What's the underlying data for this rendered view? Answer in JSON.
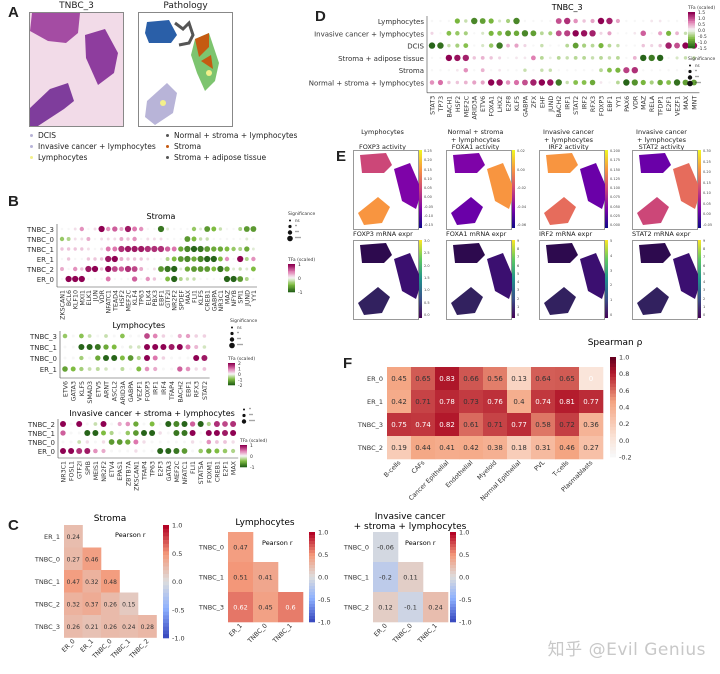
{
  "panels": {
    "A": {
      "letter": "A",
      "he_title": "TNBC_3",
      "path_title": "Pathology",
      "legend": [
        {
          "label": "DCIS",
          "color": "#b7b3d6"
        },
        {
          "label": "Invasive cancer + lymphocytes",
          "color": "#b8b4d8"
        },
        {
          "label": "Lymphocytes",
          "color": "#f3f08a"
        },
        {
          "label": "Normal + stroma + lymphocytes",
          "color": "#555555"
        },
        {
          "label": "Stroma",
          "color": "#c55a11"
        },
        {
          "label": "Stroma + adipose tissue",
          "color": "#555555"
        }
      ]
    },
    "B": {
      "letter": "B"
    },
    "C": {
      "letter": "C"
    },
    "D": {
      "letter": "D"
    },
    "E": {
      "letter": "E",
      "activity": [
        {
          "title": "Lymphocytes\n\nFOXP3 activity",
          "ticks": [
            "0.25",
            "0.20",
            "0.15",
            "0.10",
            "0.05",
            "0.00",
            "-0.05",
            "-0.10",
            "-0.15"
          ]
        },
        {
          "title": "Normal + stroma\n+ lymphocytes\nFOXA1 activity",
          "ticks": [
            "0.02",
            "0.00",
            "-0.02",
            "-0.04",
            "-0.06"
          ]
        },
        {
          "title": "Invasive cancer\n+ lymphocytes\nIRF2 activity",
          "ticks": [
            "0.200",
            "0.175",
            "0.150",
            "0.125",
            "0.100",
            "0.075",
            "0.050",
            "0.025",
            "0.000"
          ]
        },
        {
          "title": "Invasive cancer\n+ lymphocytes\nSTAT2 activity",
          "ticks": [
            "0.30",
            "0.25",
            "0.20",
            "0.15",
            "0.10",
            "0.05",
            "0.00",
            "-0.05"
          ]
        }
      ],
      "mrna": [
        {
          "title": "FOXP3 mRNA expr",
          "ticks": [
            "3.0",
            "2.5",
            "2.0",
            "1.5",
            "1.0",
            "0.5",
            "0.0"
          ]
        },
        {
          "title": "FOXA1 mRNA expr",
          "ticks": [
            "9",
            "8",
            "7",
            "6",
            "5",
            "4",
            "3",
            "2",
            "1",
            "0"
          ]
        },
        {
          "title": "IRF2 mRNA expr",
          "ticks": [
            "5",
            "4",
            "3",
            "2",
            "1",
            "0"
          ]
        },
        {
          "title": "STAT2 mRNA expr",
          "ticks": [
            "9",
            "8",
            "7",
            "6",
            "5",
            "4",
            "3",
            "2",
            "1",
            "0"
          ]
        }
      ]
    },
    "F": {
      "letter": "F"
    }
  },
  "watermark": "知乎 @Evil Genius",
  "chart_data": [
    {
      "id": "B-stroma",
      "type": "heatmap",
      "subtype": "dotplot",
      "title": "Stroma",
      "rows": [
        "TNBC_3",
        "TNBC_0",
        "TNBC_1",
        "ER_1",
        "TNBC_2",
        "ER_0"
      ],
      "columns": [
        "ZKSCAN1",
        "BCL6",
        "KLF10",
        "MXI1",
        "ELK1",
        "JUN",
        "VDR",
        "NFATC1",
        "TEAD4",
        "HSF2",
        "MEF2C",
        "KLF4",
        "TP63",
        "ELK4",
        "PBX3",
        "EBF1",
        "GTF2I",
        "NR2F2",
        "SPDEF",
        "MAX",
        "FLI1",
        "KLF5",
        "CREB1",
        "GABPA",
        "NR3C1",
        "MAZ",
        "NFYB",
        "SPI1",
        "JUND",
        "YY1"
      ],
      "values": [
        [
          0,
          0,
          0.1,
          0.4,
          0,
          0.1,
          1.0,
          0.4,
          0.6,
          0.3,
          0.9,
          0.5,
          0.4,
          0,
          0,
          -0.9,
          -0.1,
          0,
          0,
          0,
          -0.4,
          -0.1,
          -0.7,
          -0.5,
          -0.2,
          0,
          0,
          -0.3,
          -0.7,
          -0.7
        ],
        [
          -0.4,
          -0.3,
          0.1,
          0.1,
          0.3,
          0,
          0.1,
          0.1,
          0.1,
          0.3,
          0.2,
          0.4,
          0,
          0.1,
          0.1,
          0.1,
          0,
          0,
          0,
          -0.7,
          -0.5,
          -0.2,
          -0.2,
          0,
          0,
          0,
          0,
          0,
          -0.1,
          0
        ],
        [
          0.2,
          0.2,
          0.2,
          0.2,
          0.1,
          0,
          0.1,
          0.5,
          0.5,
          0.8,
          0.9,
          0.9,
          0.9,
          0.8,
          0.8,
          0.8,
          0.6,
          0.5,
          -0.6,
          -0.8,
          -1.0,
          -0.9,
          -0.7,
          -0.6,
          -0.6,
          -0.5,
          -0.4,
          -0.3,
          -0.6,
          -0.1
        ],
        [
          0,
          0.2,
          0,
          0,
          0.2,
          0.2,
          0.2,
          0.9,
          1.0,
          0.3,
          0.2,
          0.2,
          0.2,
          0.1,
          0,
          0,
          -0.3,
          -0.5,
          -0.7,
          -0.8,
          -0.6,
          -0.8,
          -1.0,
          -1.0,
          -0.5,
          0.4,
          0,
          1.0,
          -0.3,
          0.4
        ],
        [
          0.3,
          0,
          0.4,
          0.2,
          0.9,
          1.0,
          0.2,
          1.0,
          0.7,
          0.6,
          0.8,
          0.7,
          0.3,
          0,
          0.1,
          -0.7,
          -0.9,
          -1.0,
          -0.1,
          -0.6,
          -0.7,
          -0.7,
          -0.7,
          -0.5,
          -0.9,
          -0.6,
          -0.1,
          -0.2,
          -0.1,
          -0.5
        ],
        [
          0,
          1.0,
          1.0,
          1.0,
          0,
          0,
          0,
          0.5,
          0,
          0,
          0,
          0.6,
          0,
          0.4,
          0.2,
          0,
          -0.5,
          -1.0,
          -0.3,
          -0.2,
          -0.2,
          0,
          0,
          0,
          0,
          -1.0,
          -1.0,
          -0.7,
          -0.3,
          0
        ]
      ],
      "colorbar": {
        "label": "TFa (scaled)",
        "ticks": [
          "1",
          "0",
          "-1"
        ],
        "range": [
          -1,
          1
        ]
      },
      "size_legend": {
        "title": "Significance",
        "levels": [
          "ns",
          "*",
          "**",
          "***"
        ]
      }
    },
    {
      "id": "B-lymphocytes",
      "type": "heatmap",
      "subtype": "dotplot",
      "title": "Lymphocytes",
      "rows": [
        "TNBC_3",
        "TNBC_1",
        "TNBC_0",
        "ER_1"
      ],
      "columns": [
        "ETV6",
        "GATA3",
        "KLF5",
        "SMAD3",
        "ETV5",
        "ARNT",
        "ASCL2",
        "ARID3A",
        "GABPA",
        "VEZF1",
        "FOXP3",
        "IRF1",
        "IRF4",
        "TFAP4",
        "BACH2",
        "EBF1",
        "RFX3",
        "STAT2"
      ],
      "values": [
        [
          -0.8,
          0,
          -0.9,
          -0.4,
          0,
          -0.4,
          0,
          -0.9,
          0,
          0,
          1.4,
          0.9,
          0.3,
          0,
          0.6,
          0.7,
          0.3,
          0.3
        ],
        [
          0,
          0,
          -2.0,
          -2.0,
          -1.8,
          -1.2,
          -1.0,
          0,
          -0.3,
          -0.3,
          2.0,
          2.0,
          2.0,
          1.8,
          2.0,
          1.0,
          0.5,
          -0.3
        ],
        [
          0,
          0,
          -0.7,
          0,
          -1.2,
          -2.0,
          -2.0,
          -1.0,
          -1.4,
          -0.6,
          2.0,
          1.0,
          0.3,
          0,
          0,
          0,
          2.0,
          1.8
        ],
        [
          -1.3,
          -1.0,
          -0.7,
          -0.4,
          -0.5,
          -0.3,
          0,
          -0.5,
          0,
          -1.0,
          0.8,
          0.6,
          0,
          0,
          1.2,
          0.8,
          0.2,
          0.4
        ]
      ],
      "colorbar": {
        "label": "TFa (scaled)",
        "ticks": [
          "2",
          "1",
          "0",
          "-1",
          "-2"
        ],
        "range": [
          -2,
          2
        ]
      },
      "size_legend": {
        "title": "Significance",
        "levels": [
          "ns",
          "*",
          "**",
          "***"
        ]
      }
    },
    {
      "id": "B-invasive",
      "type": "heatmap",
      "subtype": "dotplot",
      "title": "Invasive cancer + stroma + lymphocytes",
      "rows": [
        "TNBC_2",
        "TNBC_1",
        "TNBC_0",
        "ER_0"
      ],
      "columns": [
        "NR3C1",
        "FOSL1",
        "GTF2I",
        "SPIB",
        "MEIS1",
        "NR2F2",
        "ETV4",
        "EPAS1",
        "ZBTB7A",
        "ZKSCAN1",
        "TFAP4",
        "TP63",
        "E2F3",
        "GATA3",
        "MEF2C",
        "NFATC1",
        "FLI1",
        "STAT5A",
        "FOXM1",
        "CREB1",
        "E2F1",
        "MAX"
      ],
      "values": [
        [
          1.0,
          0,
          1.0,
          0,
          -0.2,
          1.0,
          0,
          0.3,
          0.4,
          -0.6,
          0,
          -0.5,
          0,
          -1.0,
          -0.8,
          -1.0,
          0.6,
          -1.0,
          -0.3,
          0.8,
          0.7,
          0.8
        ],
        [
          0.6,
          0,
          0,
          -1.0,
          -1.0,
          -0.5,
          -0.3,
          0,
          -0.4,
          -0.7,
          -1.0,
          -1.0,
          0.1,
          0,
          -0.9,
          -0.9,
          1.0,
          0,
          1.0,
          1.0,
          0.9,
          1.0
        ],
        [
          0,
          0,
          -0.2,
          0.1,
          0,
          0.1,
          -0.7,
          -0.7,
          -0.6,
          0.5,
          0.1,
          0,
          0,
          0,
          0,
          0,
          0.1,
          0,
          0.4,
          0.2,
          0.2,
          0.1
        ],
        [
          1.0,
          1.0,
          0.8,
          0.9,
          0.4,
          0.3,
          0,
          0,
          0,
          0.1,
          0,
          0,
          -1.0,
          -1.0,
          -0.9,
          -0.7,
          0,
          -0.4,
          -0.6,
          -0.5,
          -0.4,
          -0.3
        ]
      ],
      "colorbar": {
        "label": "TFa (scaled)",
        "ticks": [
          "1",
          "0",
          "-1"
        ],
        "range": [
          -1,
          1
        ]
      },
      "size_legend": {
        "title": "Significance",
        "levels": [
          "*",
          "**",
          "***"
        ]
      }
    },
    {
      "id": "C-stroma",
      "type": "heatmap",
      "title": "Stroma",
      "annotation": "Pearson r",
      "rows": [
        "ER_1",
        "TNBC_0",
        "TNBC_1",
        "TNBC_2",
        "TNBC_3"
      ],
      "columns": [
        "ER_0",
        "ER_1",
        "TNBC_0",
        "TNBC_1",
        "TNBC_2"
      ],
      "values": [
        [
          0.24,
          null,
          null,
          null,
          null
        ],
        [
          0.27,
          0.46,
          null,
          null,
          null
        ],
        [
          0.47,
          0.32,
          0.48,
          null,
          null
        ],
        [
          0.32,
          0.37,
          0.26,
          0.15,
          null
        ],
        [
          0.26,
          0.21,
          0.26,
          0.24,
          0.28
        ]
      ],
      "colorbar": {
        "ticks": [
          "1.0",
          "0.5",
          "0.0",
          "-0.5",
          "-1.0"
        ],
        "range": [
          -1,
          1
        ]
      }
    },
    {
      "id": "C-lymphocytes",
      "type": "heatmap",
      "title": "Lymphocytes",
      "annotation": "Pearson r",
      "rows": [
        "TNBC_0",
        "TNBC_1",
        "TNBC_3"
      ],
      "columns": [
        "ER_1",
        "TNBC_0",
        "TNBC_1"
      ],
      "values": [
        [
          0.47,
          null,
          null
        ],
        [
          0.51,
          0.41,
          null
        ],
        [
          0.62,
          0.45,
          0.6
        ]
      ],
      "colorbar": {
        "ticks": [
          "1.0",
          "0.5",
          "0.0",
          "-0.5",
          "-1.0"
        ],
        "range": [
          -1,
          1
        ]
      }
    },
    {
      "id": "C-invasive",
      "type": "heatmap",
      "title": "Invasive cancer\n+ stroma + lymphocytes",
      "annotation": "Pearson r",
      "rows": [
        "TNBC_0",
        "TNBC_1",
        "TNBC_2"
      ],
      "columns": [
        "ER_0",
        "TNBC_0",
        "TNBC_1"
      ],
      "values": [
        [
          -0.06,
          null,
          null
        ],
        [
          -0.2,
          0.11,
          null
        ],
        [
          0.12,
          -0.1,
          0.24
        ]
      ],
      "colorbar": {
        "ticks": [
          "1.0",
          "0.5",
          "0.0",
          "-0.5",
          "-1.0"
        ],
        "range": [
          -1,
          1
        ]
      }
    },
    {
      "id": "D",
      "type": "heatmap",
      "subtype": "dotplot",
      "title": "TNBC_3",
      "rows": [
        "Lymphocytes",
        "Invasive cancer + lymphocytes",
        "DCIS",
        "Stroma + adipose tissue",
        "Stroma",
        "Normal + stroma + lymphocytes"
      ],
      "columns": [
        "STAT3",
        "TP73",
        "BACH1",
        "HSF2",
        "MEF2C",
        "ARID3A",
        "ETV6",
        "FOXA1",
        "LHX2",
        "E2F8",
        "KLF5",
        "GABPA",
        "ZFX",
        "EHF",
        "JUND",
        "BACH2",
        "IRF1",
        "STAT2",
        "IRF2",
        "RFX3",
        "FOXP3",
        "EBF1",
        "YY1",
        "PAX6",
        "VDR",
        "MAZ",
        "RELA",
        "TFDP1",
        "E2F1",
        "VEZF1",
        "MAX",
        "MNT"
      ],
      "values": [
        [
          0,
          0,
          0,
          -0.8,
          -0.3,
          -1.2,
          -1.0,
          -0.8,
          -0.2,
          -0.5,
          -1.2,
          0,
          0,
          0,
          0,
          1.0,
          1.2,
          0.6,
          0.3,
          0.5,
          1.5,
          1.3,
          0.5,
          0,
          0,
          0,
          0.1,
          0.1,
          0,
          0,
          0,
          0
        ],
        [
          0.2,
          0,
          -0.7,
          -0.6,
          -0.5,
          0,
          -0.2,
          -0.8,
          -0.7,
          -1.0,
          -0.9,
          -1.2,
          -1.0,
          -0.4,
          -0.5,
          1.0,
          1.1,
          1.5,
          1.4,
          1.3,
          0.2,
          0.5,
          0,
          0,
          0.1,
          0.9,
          0,
          0.5,
          -0.8,
          0.4,
          -0.3,
          0
        ],
        [
          -1.5,
          -1.4,
          -0.3,
          -0.5,
          -0.7,
          0,
          -0.2,
          -0.6,
          -1.3,
          0.4,
          0.5,
          0.2,
          0,
          -0.3,
          0,
          0,
          -0.4,
          -1.0,
          -0.5,
          -0.4,
          -0.8,
          -0.4,
          -0.3,
          0,
          0,
          0.3,
          0.2,
          0.3,
          1.3,
          1.0,
          1.5,
          1.4
        ],
        [
          0,
          0,
          1.5,
          1.4,
          1.3,
          0.3,
          0.4,
          0.3,
          0.2,
          0,
          0.1,
          0.1,
          0.7,
          -0.4,
          -0.1,
          -0.4,
          -0.3,
          -0.4,
          -0.4,
          -0.3,
          -0.4,
          -0.3,
          -0.4,
          0,
          0.4,
          -1.5,
          -1.3,
          -1.5,
          0,
          -0.2,
          -0.3,
          -0.3
        ],
        [
          0,
          0,
          0,
          0.1,
          0.6,
          0,
          0.4,
          0,
          0.1,
          0,
          0,
          -0.3,
          0,
          -0.3,
          -0.3,
          0,
          0,
          0,
          0,
          0,
          -0.4,
          -0.7,
          -0.8,
          1.1,
          1.2,
          0,
          0,
          0,
          0,
          0,
          0,
          0
        ],
        [
          0.6,
          0.8,
          0.3,
          0.3,
          0.4,
          0.5,
          0.5,
          1.5,
          1.4,
          0.6,
          0.8,
          1.0,
          1.3,
          1.5,
          1.4,
          -1.3,
          -0.3,
          -0.7,
          -0.7,
          -0.9,
          0.1,
          0,
          -0.4,
          -1.5,
          -1.1,
          -0.8,
          -0.5,
          -0.9,
          -0.7,
          -1.4,
          -1.0,
          -1.0
        ]
      ],
      "colorbar": {
        "label": "TFa (scaled)",
        "ticks": [
          "1.5",
          "1.0",
          "0.5",
          "0.0",
          "-0.5",
          "-1.0",
          "-1.5"
        ],
        "range": [
          -1.5,
          1.5
        ]
      },
      "size_legend": {
        "title": "Significance",
        "levels": [
          "ns",
          "*",
          "**",
          "***"
        ]
      }
    },
    {
      "id": "F",
      "type": "heatmap",
      "title": "Spearman ρ",
      "rows": [
        "ER_0",
        "ER_1",
        "TNBC_3",
        "TNBC_2"
      ],
      "columns": [
        "B-cells",
        "CAFs",
        "Cancer Epithelial",
        "Endothelial",
        "Myeloid",
        "Normal Epithelial",
        "PVL",
        "T-cells",
        "Plasmablasts"
      ],
      "values": [
        [
          0.45,
          0.65,
          0.83,
          0.66,
          0.56,
          0.13,
          0.64,
          0.65,
          0
        ],
        [
          0.42,
          0.71,
          0.78,
          0.73,
          0.76,
          0.4,
          0.74,
          0.81,
          0.77
        ],
        [
          0.75,
          0.74,
          0.82,
          0.61,
          0.71,
          0.77,
          0.58,
          0.72,
          0.36
        ],
        [
          0.19,
          0.44,
          0.41,
          0.42,
          0.38,
          0.18,
          0.31,
          0.46,
          0.27
        ]
      ],
      "colorbar": {
        "ticks": [
          "1.0",
          "0.8",
          "0.6",
          "0.4",
          "0.2",
          "0.0",
          "-0.2"
        ],
        "range": [
          -0.2,
          1.0
        ]
      }
    }
  ]
}
